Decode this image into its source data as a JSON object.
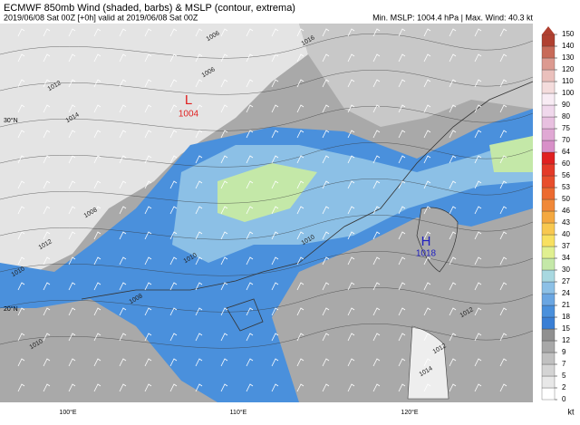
{
  "header": {
    "title": "ECMWF 850mb Wind (shaded, barbs) & MSLP (contour, extrema)",
    "subtitle": "2019/06/08 Sat 00Z [+0h] valid at 2019/06/08 Sat 00Z",
    "stats": "Min. MSLP: 1004.4 hPa | Max. Wind: 40.3 kt"
  },
  "colorbar": {
    "unit": "kt",
    "ticks": [
      0,
      2,
      5,
      7,
      9,
      12,
      15,
      18,
      21,
      24,
      27,
      30,
      34,
      37,
      40,
      43,
      46,
      50,
      53,
      56,
      60,
      64,
      70,
      75,
      80,
      90,
      100,
      110,
      120,
      130,
      140,
      150
    ],
    "colors": [
      "#ffffff",
      "#e8e8e8",
      "#d4d4d4",
      "#c0c0c0",
      "#a8a8a8",
      "#909090",
      "#3a7fd5",
      "#4a90dc",
      "#6aa6e2",
      "#8cc0e6",
      "#a8d8e0",
      "#c4e8a8",
      "#e0f090",
      "#f8e060",
      "#f8c850",
      "#f4a840",
      "#f08838",
      "#ec6a30",
      "#e84e2c",
      "#e43a28",
      "#e02020",
      "#d890c8",
      "#e0a8d4",
      "#e8c0e0",
      "#f0d8ec",
      "#f8ecf4",
      "#f4dcdc",
      "#eac0bc",
      "#dc9a90",
      "#c86a58",
      "#b04030"
    ]
  },
  "map": {
    "lat_labels": [
      "30°N",
      "20°N"
    ],
    "lon_labels": [
      "100°E",
      "110°E",
      "120°E"
    ],
    "low": {
      "symbol": "L",
      "value": "1004"
    },
    "high": {
      "symbol": "H",
      "value": "1018"
    },
    "contour_labels": [
      "1006",
      "1008",
      "1010",
      "1012",
      "1014",
      "1010",
      "1008",
      "1012",
      "1010",
      "1012",
      "1014",
      "1012",
      "1006",
      "1016",
      "1010"
    ]
  }
}
